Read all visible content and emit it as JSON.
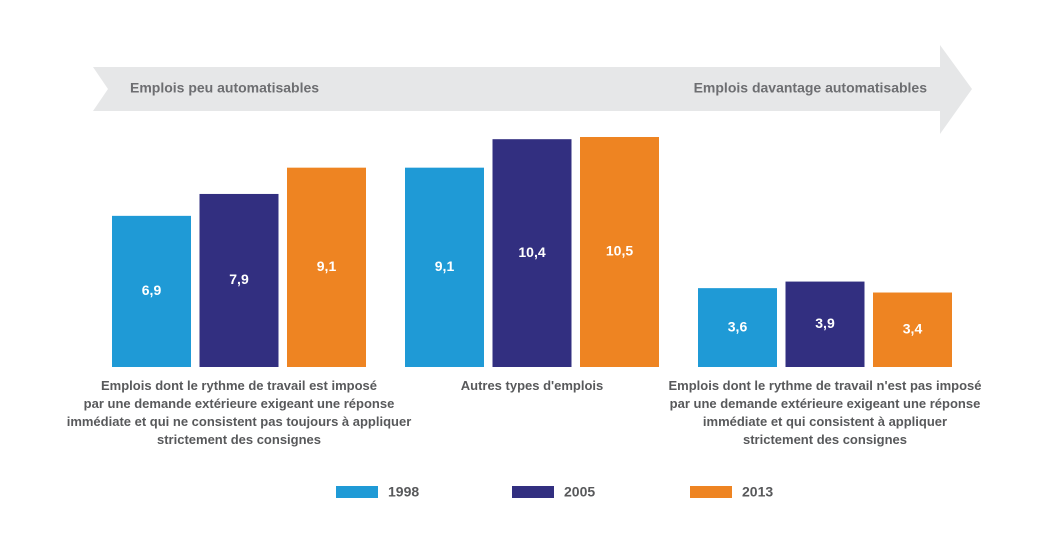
{
  "chart_data": {
    "type": "bar",
    "annotations": [
      "Emplois peu automatisables",
      "Emplois davantage automatisables"
    ],
    "categories": [
      "Emplois dont le rythme de travail est imposé\npar une demande extérieure exigeant une réponse\nimmédiate et qui ne consistent pas toujours à appliquer\nstrictement des consignes",
      "Autres types d'emplois",
      "Emplois dont le rythme de travail n'est pas imposé\npar une demande extérieure exigeant une réponse\nimmédiate et qui consistent à appliquer\nstrictement des consignes"
    ],
    "series": [
      {
        "name": "1998",
        "color": "#1f9ad6",
        "values": [
          6.9,
          9.1,
          3.6
        ],
        "value_labels": [
          "6,9",
          "9,1",
          "3,6"
        ]
      },
      {
        "name": "2005",
        "color": "#322f80",
        "values": [
          7.9,
          10.4,
          3.9
        ],
        "value_labels": [
          "7,9",
          "10,4",
          "3,9"
        ]
      },
      {
        "name": "2013",
        "color": "#ee8422",
        "values": [
          9.1,
          10.5,
          3.4
        ],
        "value_labels": [
          "9,1",
          "10,5",
          "3,4"
        ]
      }
    ]
  }
}
